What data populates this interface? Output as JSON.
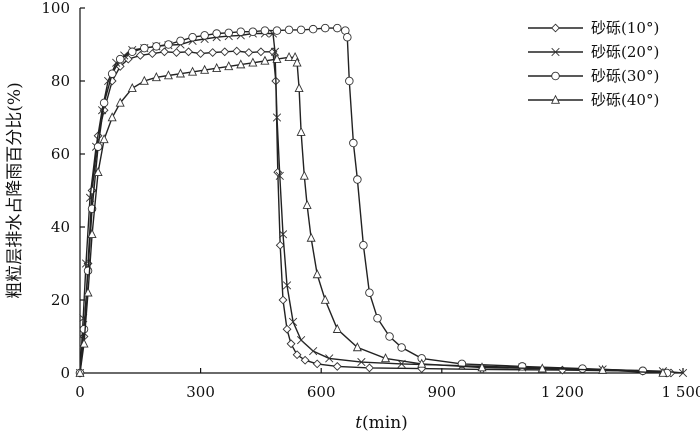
{
  "chart_data": {
    "type": "line",
    "title": "",
    "xlabel_italic": "t",
    "xlabel_rest": "(min)",
    "ylabel": "粗粒层排水占降雨百分比(%)",
    "xlim": [
      0,
      1500
    ],
    "ylim": [
      0,
      100
    ],
    "x_ticks": [
      0,
      300,
      600,
      900,
      1200,
      1500
    ],
    "x_tick_labels": [
      "0",
      "300",
      "600",
      "900",
      "1 200",
      "1 500"
    ],
    "y_ticks": [
      0,
      20,
      40,
      60,
      80,
      100
    ],
    "y_tick_labels": [
      "0",
      "20",
      "40",
      "60",
      "80",
      "100"
    ],
    "grid": false,
    "legend_position": "top-right",
    "series": [
      {
        "name": "砂砾(10°)",
        "marker": "diamond",
        "x": [
          0,
          10,
          20,
          30,
          45,
          60,
          80,
          100,
          120,
          150,
          180,
          210,
          240,
          270,
          300,
          330,
          360,
          390,
          420,
          450,
          480,
          487,
          492,
          498,
          505,
          515,
          525,
          540,
          560,
          590,
          640,
          720,
          850,
          1000,
          1200,
          1400,
          1470
        ],
        "y": [
          0,
          10,
          30,
          50,
          65,
          72,
          80,
          84,
          86,
          87,
          87.5,
          88,
          87.8,
          88,
          87.5,
          87.8,
          88,
          88.2,
          87.8,
          88,
          88,
          80,
          55,
          35,
          20,
          12,
          8,
          5,
          3.5,
          2.5,
          1.8,
          1.4,
          1.2,
          1.0,
          0.8,
          0.5,
          0
        ]
      },
      {
        "name": "砂砾(20°)",
        "marker": "x",
        "x": [
          0,
          8,
          15,
          25,
          40,
          55,
          70,
          90,
          110,
          130,
          160,
          190,
          220,
          250,
          280,
          310,
          340,
          370,
          400,
          430,
          460,
          480,
          485,
          490,
          497,
          505,
          515,
          530,
          550,
          580,
          620,
          700,
          800,
          950,
          1100,
          1300,
          1450,
          1500
        ],
        "y": [
          0,
          15,
          30,
          48,
          62,
          72,
          80,
          85,
          87,
          88.5,
          89,
          89.5,
          89.8,
          90,
          91,
          91.5,
          92,
          92.3,
          92.5,
          93,
          93,
          93,
          88,
          70,
          54,
          38,
          24,
          14,
          9,
          6,
          4,
          3,
          2.5,
          2,
          1.5,
          1,
          0.5,
          0
        ]
      },
      {
        "name": "砂砾(30°)",
        "marker": "circle",
        "x": [
          0,
          10,
          20,
          30,
          45,
          60,
          80,
          100,
          130,
          160,
          190,
          220,
          250,
          280,
          310,
          340,
          370,
          400,
          430,
          460,
          490,
          520,
          550,
          580,
          610,
          640,
          660,
          665,
          670,
          680,
          690,
          705,
          720,
          740,
          770,
          800,
          850,
          950,
          1100,
          1250,
          1400,
          1460
        ],
        "y": [
          0,
          12,
          28,
          45,
          62,
          74,
          82,
          86,
          88,
          89,
          89.5,
          90,
          91,
          92,
          92.5,
          93,
          93.2,
          93.5,
          93.5,
          93.8,
          93.8,
          94,
          94,
          94.2,
          94.5,
          94.5,
          93.8,
          92,
          80,
          63,
          53,
          35,
          22,
          15,
          10,
          7,
          4,
          2.5,
          1.8,
          1.2,
          0.6,
          0
        ]
      },
      {
        "name": "砂砾(40°)",
        "marker": "triangle",
        "x": [
          0,
          10,
          20,
          30,
          45,
          60,
          80,
          100,
          130,
          160,
          190,
          220,
          250,
          280,
          310,
          340,
          370,
          400,
          430,
          460,
          490,
          520,
          535,
          540,
          545,
          550,
          558,
          565,
          575,
          590,
          610,
          640,
          690,
          760,
          850,
          1000,
          1150,
          1300,
          1450
        ],
        "y": [
          0,
          8,
          22,
          38,
          55,
          64,
          70,
          74,
          78,
          80,
          81,
          81.5,
          82,
          82.5,
          83,
          83.5,
          84,
          84.5,
          85,
          85.5,
          86,
          86.5,
          86.5,
          85,
          78,
          66,
          54,
          46,
          37,
          27,
          20,
          12,
          7,
          4,
          2.5,
          1.5,
          1.2,
          0.8,
          0
        ]
      }
    ]
  }
}
